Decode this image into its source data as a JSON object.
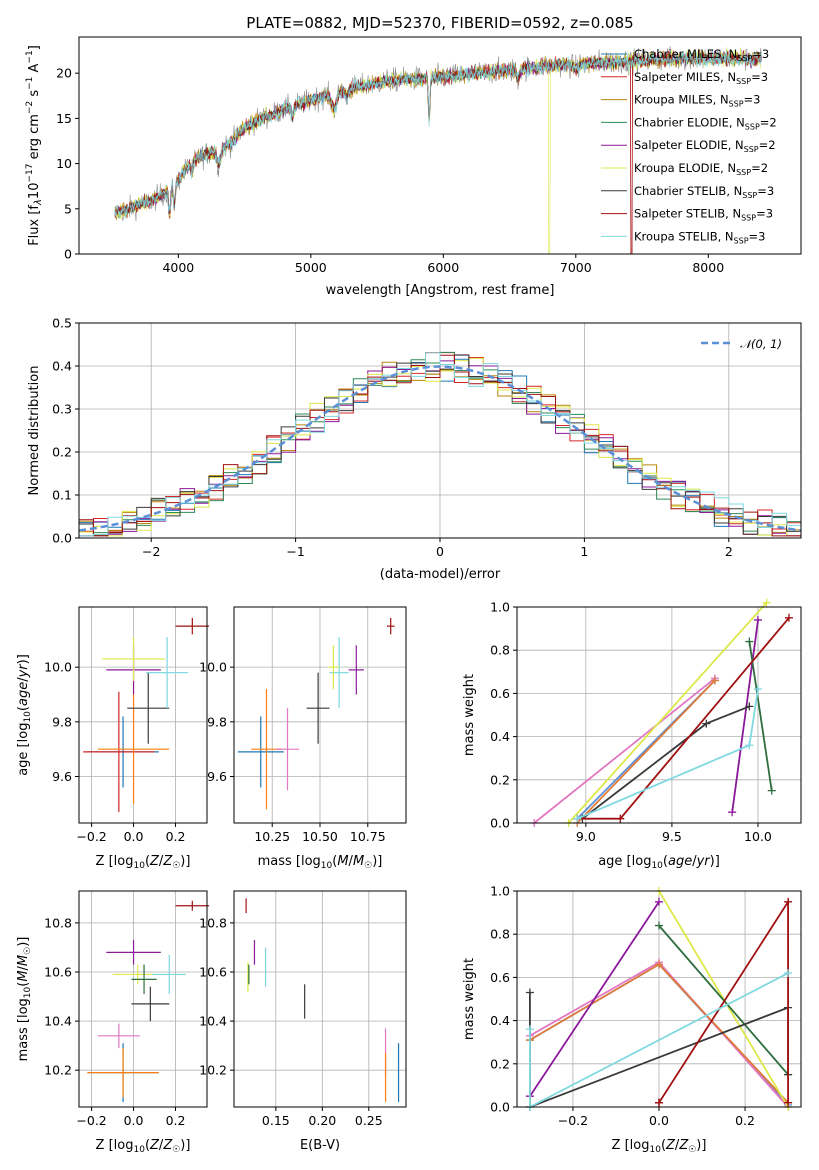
{
  "chart_data": [
    {
      "type": "line",
      "title": "PLATE=0882, MJD=52370, FIBERID=0592, z=0.085",
      "xlabel": "wavelength [Angstrom, rest frame]",
      "ylabel": "Flux [fλ10⁻¹⁷ erg cm⁻² s⁻¹ A⁻¹]",
      "xlim": [
        3250,
        8700
      ],
      "ylim": [
        0,
        24
      ],
      "xticks": [
        "4000",
        "5000",
        "6000",
        "7000",
        "8000"
      ],
      "yticks": [
        "0",
        "5",
        "10",
        "15",
        "20"
      ],
      "legend_position": "right",
      "series": [
        {
          "name": "Chabrier MILES, N",
          "color": "#1f77b4"
        },
        {
          "name": "Salpeter MILES, N",
          "color": "#d62728"
        },
        {
          "name": "Kroupa MILES, N",
          "color": "#b8860b"
        },
        {
          "name": "Chabrier ELODIE, N",
          "color": "#2e8b57"
        },
        {
          "name": "Salpeter ELODIE, N",
          "color": "#8b1a9b"
        },
        {
          "name": "Kroupa ELODIE, N",
          "color": "#dde84a"
        },
        {
          "name": "Chabrier STELIB, N",
          "color": "#3a3a3a"
        },
        {
          "name": "Salpeter STELIB, N",
          "color": "#a01010"
        },
        {
          "name": "Kroupa STELIB, N",
          "color": "#80d8e0"
        }
      ],
      "legend_nssp": [
        "=3",
        "=3",
        "=3",
        "=2",
        "=2",
        "=2",
        "=3",
        "=3",
        "=3"
      ],
      "legend_sub": "SSP",
      "continuum": {
        "x": [
          3500,
          3600,
          3700,
          3800,
          3900,
          4000,
          4100,
          4200,
          4300,
          4400,
          4500,
          4600,
          4800,
          5000,
          5200,
          5400,
          5600,
          5800,
          6000,
          6200,
          6400,
          6600,
          6800,
          7000,
          7200,
          7400,
          7600,
          7800,
          8000,
          8200,
          8400
        ],
        "y": [
          4.5,
          4.8,
          5.5,
          5.9,
          6.8,
          8.2,
          10.3,
          11.0,
          11.5,
          12.3,
          14.0,
          14.8,
          16.0,
          17.0,
          18.0,
          18.6,
          19.2,
          19.4,
          19.6,
          19.9,
          20.2,
          20.5,
          20.8,
          21.0,
          21.2,
          21.3,
          21.5,
          21.6,
          21.7,
          21.6,
          21.5
        ]
      },
      "annotations": {
        "drop_lines_x": [
          6800,
          7420
        ]
      }
    },
    {
      "type": "line",
      "xlabel": "(data-model)/error",
      "ylabel": "Normed distribution",
      "xlim": [
        -2.5,
        2.5
      ],
      "ylim": [
        0,
        0.5
      ],
      "xticks": [
        "−2",
        "−1",
        "0",
        "1",
        "2"
      ],
      "yticks": [
        "0.0",
        "0.1",
        "0.2",
        "0.3",
        "0.4",
        "0.5"
      ],
      "grid": true,
      "legend_position": "top-right",
      "normal_label": "𝒩(0, 1)",
      "normal_color": "#5b8fd6",
      "bin_width": 0.1
    },
    {
      "type": "scatter",
      "xlabel": "Z [log₁₀(Z/Z☉)]",
      "ylabel": "age  [log₁₀(age/yr)]",
      "xlim": [
        -0.26,
        0.35
      ],
      "ylim": [
        9.43,
        10.22
      ],
      "xticks": [
        "−0.2",
        "0.0",
        "0.2"
      ],
      "yticks": [
        "9.6",
        "9.8",
        "10.0"
      ],
      "points": [
        {
          "x": -0.05,
          "y": 9.69,
          "xerr": 0.17,
          "yerr": 0.13,
          "color": "#1f77b4"
        },
        {
          "x": -0.07,
          "y": 9.69,
          "xerr": 0.17,
          "yerr": 0.22,
          "color": "#d62728"
        },
        {
          "x": 0.0,
          "y": 9.7,
          "xerr": 0.17,
          "yerr": 0.2,
          "color": "#ff7f0e"
        },
        {
          "x": 0.0,
          "y": 9.99,
          "xerr": 0.13,
          "yerr": 0.09,
          "color": "#8b1a9b"
        },
        {
          "x": 0.0,
          "y": 10.03,
          "xerr": 0.15,
          "yerr": 0.08,
          "color": "#dde84a"
        },
        {
          "x": 0.07,
          "y": 9.85,
          "xerr": 0.1,
          "yerr": 0.13,
          "color": "#3a3a3a"
        },
        {
          "x": 0.16,
          "y": 9.98,
          "xerr": 0.1,
          "yerr": 0.13,
          "color": "#80d8e0"
        },
        {
          "x": 0.28,
          "y": 10.15,
          "xerr": 0.08,
          "yerr": 0.03,
          "color": "#a01010"
        }
      ]
    },
    {
      "type": "scatter",
      "xlabel": "mass [log₁₀(M/M☉)]",
      "xlim": [
        10.05,
        10.95
      ],
      "ylim": [
        9.43,
        10.22
      ],
      "xticks": [
        "10.25",
        "10.50",
        "10.75"
      ],
      "yticks": [
        "9.6",
        "9.8",
        "10.0"
      ]
    },
    {
      "type": "line",
      "xlabel": "age  [log₁₀(age/yr)]",
      "ylabel": "mass weight",
      "xlim": [
        8.6,
        10.25
      ],
      "ylim": [
        0,
        1
      ],
      "xticks": [
        "9.0",
        "9.5",
        "10.0"
      ],
      "yticks": [
        "0.0",
        "0.2",
        "0.4",
        "0.6",
        "0.8",
        "1.0"
      ],
      "grid": true,
      "series": [
        {
          "color": "#5b8fd6",
          "x": [
            8.95,
            9.75
          ],
          "y": [
            0.02,
            0.66
          ]
        },
        {
          "color": "#e377c2",
          "x": [
            8.7,
            9.75
          ],
          "y": [
            0.0,
            0.67
          ]
        },
        {
          "color": "#e07b39",
          "x": [
            8.95,
            9.75
          ],
          "y": [
            0.0,
            0.66
          ]
        },
        {
          "color": "#dde84a",
          "x": [
            8.9,
            10.05
          ],
          "y": [
            0.0,
            1.02
          ]
        },
        {
          "color": "#8b1a9b",
          "x": [
            9.85,
            10.0
          ],
          "y": [
            0.05,
            0.94
          ]
        },
        {
          "color": "#2e6e3e",
          "x": [
            9.95,
            10.08
          ],
          "y": [
            0.84,
            0.15
          ]
        },
        {
          "color": "#3a3a3a",
          "x": [
            8.98,
            9.7,
            9.95
          ],
          "y": [
            0.02,
            0.46,
            0.54
          ]
        },
        {
          "color": "#a01010",
          "x": [
            8.95,
            9.2,
            10.18
          ],
          "y": [
            0.02,
            0.02,
            0.95
          ]
        },
        {
          "color": "#80d8e0",
          "x": [
            8.95,
            9.95,
            10.0
          ],
          "y": [
            0.02,
            0.36,
            0.62
          ]
        }
      ]
    },
    {
      "type": "scatter",
      "xlabel": "Z [log₁₀(Z/Z☉)]",
      "ylabel": "mass [log₁₀(M/M☉)]",
      "xlim": [
        -0.26,
        0.35
      ],
      "ylim": [
        10.05,
        10.93
      ],
      "xticks": [
        "−0.2",
        "0.0",
        "0.2"
      ],
      "yticks": [
        "10.2",
        "10.4",
        "10.6",
        "10.8"
      ]
    },
    {
      "type": "scatter",
      "xlabel": "E(B-V)",
      "xlim": [
        0.105,
        0.29
      ],
      "ylim": [
        10.05,
        10.93
      ],
      "xticks": [
        "0.15",
        "0.20",
        "0.25"
      ],
      "yticks": [
        "10.2",
        "10.4",
        "10.6",
        "10.8"
      ]
    },
    {
      "type": "line",
      "xlabel": "Z [log₁₀(Z/Z☉)]",
      "ylabel": "mass weight",
      "xlim": [
        -0.33,
        0.33
      ],
      "ylim": [
        0,
        1
      ],
      "xticks": [
        "−0.2",
        "0.0",
        "0.2"
      ],
      "yticks": [
        "0.0",
        "0.2",
        "0.4",
        "0.6",
        "0.8",
        "1.0"
      ],
      "grid": true,
      "series": [
        {
          "color": "#5b8fd6",
          "x": [
            -0.3,
            0.0,
            0.3
          ],
          "y": [
            0.31,
            0.66,
            0.01
          ]
        },
        {
          "color": "#e377c2",
          "x": [
            -0.3,
            0.0,
            0.3
          ],
          "y": [
            0.33,
            0.67,
            0.0
          ]
        },
        {
          "color": "#e07b39",
          "x": [
            -0.3,
            0.0,
            0.3
          ],
          "y": [
            0.31,
            0.66,
            0.02
          ]
        },
        {
          "color": "#dde84a",
          "x": [
            0.0,
            0.3
          ],
          "y": [
            1.0,
            0.0
          ]
        },
        {
          "color": "#8b1a9b",
          "x": [
            -0.3,
            0.0
          ],
          "y": [
            0.05,
            0.95
          ]
        },
        {
          "color": "#2e6e3e",
          "x": [
            0.0,
            0.3
          ],
          "y": [
            0.84,
            0.15
          ]
        },
        {
          "color": "#3a3a3a",
          "x": [
            -0.3,
            -0.3,
            0.3,
            0.3
          ],
          "y": [
            0.53,
            0.0,
            0.46,
            0.15
          ]
        },
        {
          "color": "#a01010",
          "x": [
            0.0,
            0.0,
            0.3,
            0.3
          ],
          "y": [
            0.02,
            0.02,
            0.95,
            0.02
          ]
        },
        {
          "color": "#80d8e0",
          "x": [
            -0.3,
            -0.3,
            0.3
          ],
          "y": [
            0.36,
            0.0,
            0.62
          ]
        }
      ]
    }
  ]
}
